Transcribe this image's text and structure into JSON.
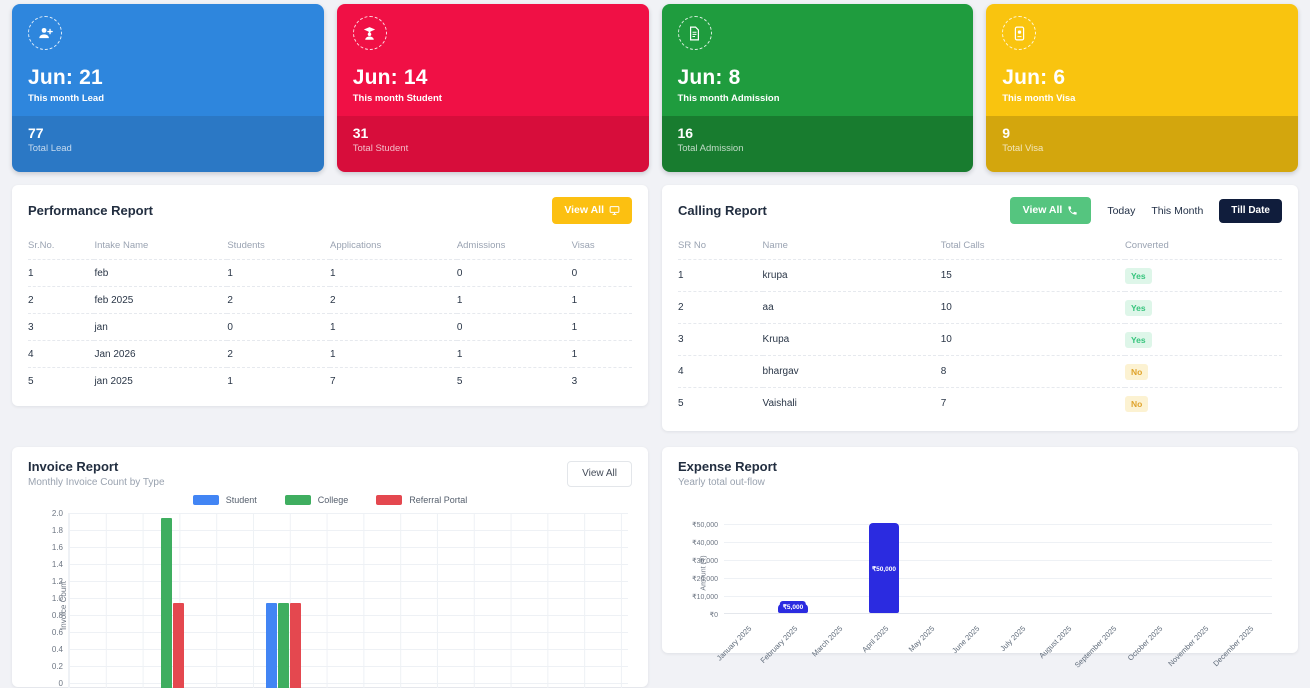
{
  "stat_cards": [
    {
      "id": "lead",
      "icon": "user-plus-icon",
      "month_label": "Jun: 21",
      "month_sub": "This month Lead",
      "total": "77",
      "total_sub": "Total Lead",
      "color_top": "#2e86dd",
      "color_bottom": "#2b78c5"
    },
    {
      "id": "student",
      "icon": "graduate-icon",
      "month_label": "Jun: 14",
      "month_sub": "This month Student",
      "total": "31",
      "total_sub": "Total Student",
      "color_top": "#f01045",
      "color_bottom": "#d70d3b"
    },
    {
      "id": "admission",
      "icon": "document-icon",
      "month_label": "Jun: 8",
      "month_sub": "This month Admission",
      "total": "16",
      "total_sub": "Total Admission",
      "color_top": "#1f9c3e",
      "color_bottom": "#187c2f"
    },
    {
      "id": "visa",
      "icon": "passport-icon",
      "month_label": "Jun: 6",
      "month_sub": "This month Visa",
      "total": "9",
      "total_sub": "Total Visa",
      "color_top": "#f9c40f",
      "color_bottom": "#d3a60d"
    }
  ],
  "performance_report": {
    "title": "Performance Report",
    "view_all_label": "View All",
    "view_all_color": "#fcc011",
    "columns": [
      "Sr.No.",
      "Intake Name",
      "Students",
      "Applications",
      "Admissions",
      "Visas"
    ],
    "rows": [
      [
        "1",
        "feb",
        "1",
        "1",
        "0",
        "0"
      ],
      [
        "2",
        "feb 2025",
        "2",
        "2",
        "1",
        "1"
      ],
      [
        "3",
        "jan",
        "0",
        "1",
        "0",
        "1"
      ],
      [
        "4",
        "Jan 2026",
        "2",
        "1",
        "1",
        "1"
      ],
      [
        "5",
        "jan 2025",
        "1",
        "7",
        "5",
        "3"
      ]
    ]
  },
  "calling_report": {
    "title": "Calling Report",
    "view_all_label": "View All",
    "view_all_color": "#55c57f",
    "filters": [
      "Today",
      "This Month",
      "Till Date"
    ],
    "active_filter": "Till Date",
    "active_filter_color": "#101d3c",
    "columns": [
      "SR No",
      "Name",
      "Total Calls",
      "Converted"
    ],
    "rows": [
      [
        "1",
        "krupa",
        "15",
        "Yes"
      ],
      [
        "2",
        "aa",
        "10",
        "Yes"
      ],
      [
        "3",
        "Krupa",
        "10",
        "Yes"
      ],
      [
        "4",
        "bhargav",
        "8",
        "No"
      ],
      [
        "5",
        "Vaishali",
        "7",
        "No"
      ]
    ],
    "badge_colors": {
      "yes_text": "#35c47c",
      "yes_bg": "#def6e9",
      "no_text": "#dfa32c",
      "no_bg": "#fcf2d2"
    }
  },
  "invoice_report": {
    "title": "Invoice Report",
    "subtitle": "Monthly Invoice Count by Type",
    "view_all_label": "View All"
  },
  "expense_report": {
    "title": "Expense Report",
    "subtitle": "Yearly total out-flow"
  },
  "chart_data": [
    {
      "type": "bar",
      "title": "Invoice Report",
      "subtitle": "Monthly Invoice Count by Type",
      "ylabel": "Invoice Count",
      "ylim": [
        0,
        2
      ],
      "yticks": [
        "2.0",
        "1.8",
        "1.6",
        "1.4",
        "1.2",
        "1.0",
        "0.8",
        "0.6",
        "0.4",
        "0.2",
        "0"
      ],
      "legend_position": "top",
      "grid": true,
      "series_colors": {
        "Student": "#4285f4",
        "College": "#3fae60",
        "Referral Portal": "#e4484f"
      },
      "legend": [
        "Student",
        "College",
        "Referral Portal"
      ],
      "note": "x-axis category labels are cut off at the bottom edge of the screenshot",
      "groups": [
        {
          "x_frac": 0.165,
          "bars": [
            {
              "series": "College",
              "value": 2
            },
            {
              "series": "Referral Portal",
              "value": 1
            }
          ]
        },
        {
          "x_frac": 0.352,
          "bars": [
            {
              "series": "Student",
              "value": 1
            },
            {
              "series": "College",
              "value": 1
            },
            {
              "series": "Referral Portal",
              "value": 1
            }
          ]
        }
      ]
    },
    {
      "type": "bar",
      "title": "Expense Report",
      "subtitle": "Yearly total out-flow",
      "ylabel": "Amount (₹)",
      "ylim": [
        0,
        50000
      ],
      "yticks": [
        "₹0",
        "₹10,000",
        "₹20,000",
        "₹30,000",
        "₹40,000",
        "₹50,000"
      ],
      "grid": true,
      "bar_color": "#2b2be0",
      "categories": [
        "January 2025",
        "February 2025",
        "March 2025",
        "April 2025",
        "May 2025",
        "June 2025",
        "July 2025",
        "August 2025",
        "September 2025",
        "October 2025",
        "November 2025",
        "December 2025"
      ],
      "values": [
        0,
        5000,
        0,
        50000,
        0,
        0,
        0,
        0,
        0,
        0,
        0,
        0
      ],
      "bar_labels": [
        "",
        "₹5,000",
        "",
        "₹50,000",
        "",
        "",
        "",
        "",
        "",
        "",
        "",
        ""
      ]
    }
  ]
}
